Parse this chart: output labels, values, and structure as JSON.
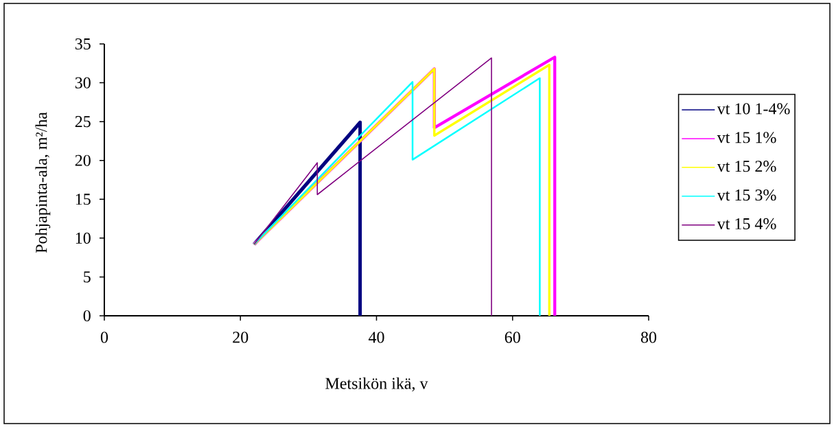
{
  "chart_data": {
    "type": "line",
    "xlabel": "Metsikön ikä,  v",
    "ylabel": "Pohjapinta-ala, m²/ha",
    "xlim": [
      0,
      80
    ],
    "xticks": [
      0,
      20,
      40,
      60,
      80
    ],
    "ylim": [
      0,
      35
    ],
    "yticks": [
      0,
      5,
      10,
      15,
      20,
      25,
      30,
      35
    ],
    "legend": "right",
    "grid": false,
    "marker": "none",
    "line_style": "solid",
    "series": [
      {
        "name": "vt 10 1-4%",
        "color": "#000080",
        "x": [
          22,
          37.6,
          37.6
        ],
        "values": [
          9.2,
          24.9,
          0
        ]
      },
      {
        "name": "vt 15 1%",
        "color": "#ff00ff",
        "x": [
          22,
          48.5,
          48.5,
          66.2,
          66.2
        ],
        "values": [
          9.2,
          31.8,
          24.2,
          33.3,
          0
        ]
      },
      {
        "name": "vt 15 2%",
        "color": "#ffff00",
        "x": [
          22,
          48.5,
          48.5,
          65.4,
          65.4
        ],
        "values": [
          9.2,
          31.8,
          23.2,
          32.3,
          0
        ]
      },
      {
        "name": "vt 15 3%",
        "color": "#00ffff",
        "x": [
          22,
          45.3,
          45.3,
          64.0,
          64.0
        ],
        "values": [
          9.2,
          30.1,
          20.1,
          30.6,
          0
        ]
      },
      {
        "name": "vt 15 4%",
        "color": "#800080",
        "x": [
          22,
          31.3,
          31.3,
          56.9,
          56.9
        ],
        "values": [
          9.2,
          19.7,
          15.6,
          33.2,
          0
        ]
      }
    ]
  }
}
